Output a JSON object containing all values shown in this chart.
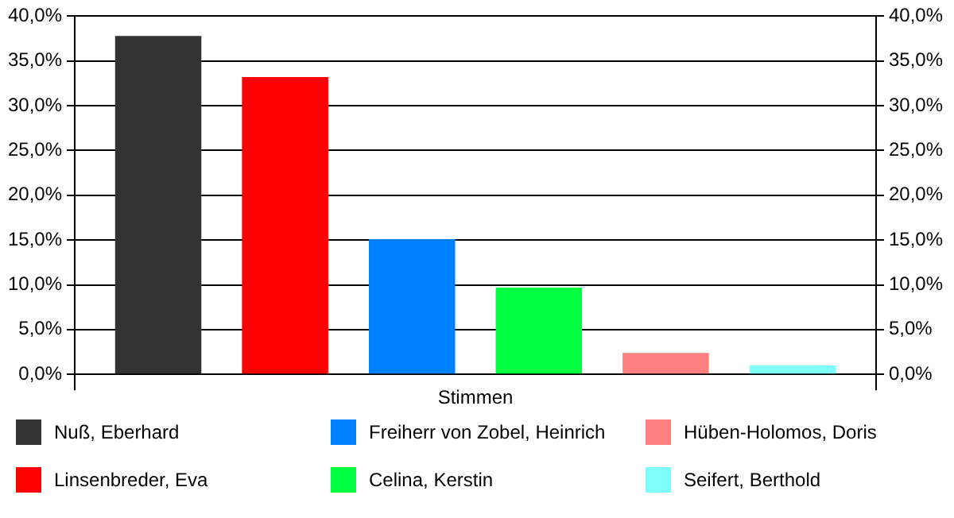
{
  "chart_data": {
    "type": "bar",
    "categories": [
      "Stimmen"
    ],
    "series": [
      {
        "name": "Nuß, Eberhard",
        "color": "#333333",
        "values": [
          37.8
        ]
      },
      {
        "name": "Linsenbreder, Eva",
        "color": "#ff0000",
        "values": [
          33.2
        ]
      },
      {
        "name": "Freiherr von Zobel, Heinrich",
        "color": "#0080ff",
        "values": [
          15.1
        ]
      },
      {
        "name": "Celina, Kerstin",
        "color": "#00ff40",
        "values": [
          9.7
        ]
      },
      {
        "name": "Hüben-Holomos, Doris",
        "color": "#ff8080",
        "values": [
          2.4
        ]
      },
      {
        "name": "Seifert, Berthold",
        "color": "#80ffff",
        "values": [
          1.0
        ]
      }
    ],
    "ylim": [
      0,
      40
    ],
    "yticks": [
      {
        "value": 0,
        "label": "0,0%"
      },
      {
        "value": 5,
        "label": "5,0%"
      },
      {
        "value": 10,
        "label": "10,0%"
      },
      {
        "value": 15,
        "label": "15,0%"
      },
      {
        "value": 20,
        "label": "20,0%"
      },
      {
        "value": 25,
        "label": "25,0%"
      },
      {
        "value": 30,
        "label": "30,0%"
      },
      {
        "value": 35,
        "label": "35,0%"
      },
      {
        "value": 40,
        "label": "40,0%"
      }
    ],
    "grid": "y",
    "legend": "bottom"
  }
}
